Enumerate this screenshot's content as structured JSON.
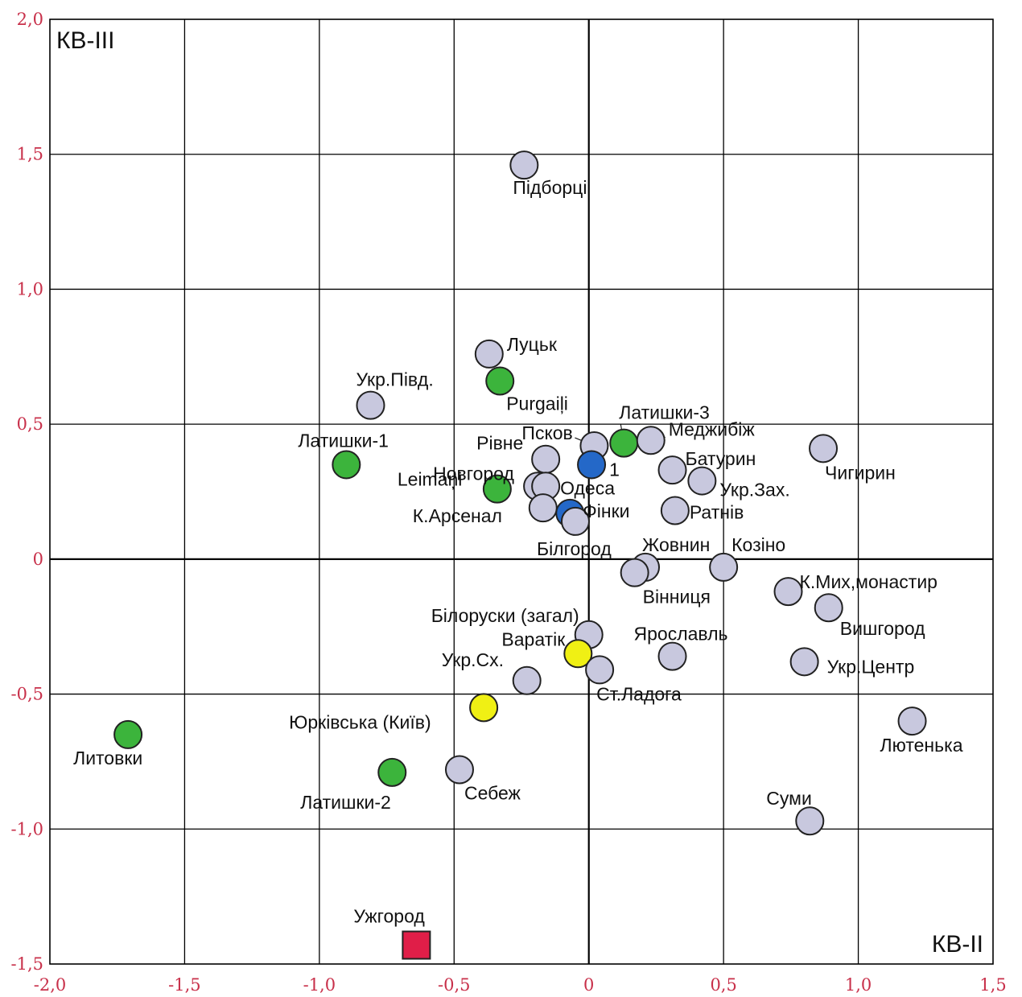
{
  "chart_data": {
    "type": "scatter",
    "x_range": [
      -2.0,
      1.5
    ],
    "y_range": [
      -1.5,
      2.0
    ],
    "grid": true,
    "x_ticks": [
      {
        "value": -2.0,
        "label": "-2,0"
      },
      {
        "value": -1.5,
        "label": "-1,5"
      },
      {
        "value": -1.0,
        "label": "-1,0"
      },
      {
        "value": -0.5,
        "label": "-0,5"
      },
      {
        "value": 0.0,
        "label": "0"
      },
      {
        "value": 0.5,
        "label": "0,5"
      },
      {
        "value": 1.0,
        "label": "1,0"
      },
      {
        "value": 1.5,
        "label": "1,5"
      }
    ],
    "y_ticks": [
      {
        "value": 2.0,
        "label": "2,0"
      },
      {
        "value": 1.5,
        "label": "1,5"
      },
      {
        "value": 1.0,
        "label": "1,0"
      },
      {
        "value": 0.5,
        "label": "0,5"
      },
      {
        "value": 0.0,
        "label": "0"
      },
      {
        "value": -0.5,
        "label": "-0,5"
      },
      {
        "value": -1.0,
        "label": "-1,0"
      },
      {
        "value": -1.5,
        "label": "-1,5"
      }
    ],
    "x_axis_label": "КВ-II",
    "y_axis_label": "КВ-III",
    "colors": {
      "lavender": "#c8c8de",
      "green": "#3cb43c",
      "blue": "#2468c8",
      "yellow": "#f0f014",
      "red": "#e01e48"
    },
    "points": [
      {
        "label": "Підборці",
        "x": -0.24,
        "y": 1.46,
        "color": "lavender",
        "shape": "circle"
      },
      {
        "label": "Луцьк",
        "x": -0.37,
        "y": 0.76,
        "color": "lavender",
        "shape": "circle"
      },
      {
        "label": "Purgaiļi",
        "x": -0.33,
        "y": 0.66,
        "color": "green",
        "shape": "circle"
      },
      {
        "label": "Укр.Півд.",
        "x": -0.81,
        "y": 0.57,
        "color": "lavender",
        "shape": "circle"
      },
      {
        "label": "Латишки-1",
        "x": -0.9,
        "y": 0.35,
        "color": "green",
        "shape": "circle"
      },
      {
        "label": "Латишки-3",
        "x": 0.13,
        "y": 0.43,
        "color": "green",
        "shape": "circle"
      },
      {
        "label": "Псков",
        "x": 0.02,
        "y": 0.42,
        "color": "lavender",
        "shape": "circle"
      },
      {
        "label": "Меджибіж",
        "x": 0.23,
        "y": 0.44,
        "color": "lavender",
        "shape": "circle"
      },
      {
        "label": "1",
        "x": 0.01,
        "y": 0.35,
        "color": "blue",
        "shape": "circle"
      },
      {
        "label": "Рівне",
        "x": -0.16,
        "y": 0.37,
        "color": "lavender",
        "shape": "circle"
      },
      {
        "label": "Новгород",
        "x": -0.19,
        "y": 0.27,
        "color": "lavender",
        "shape": "circle"
      },
      {
        "label": "Leimaņi",
        "x": -0.34,
        "y": 0.26,
        "color": "green",
        "shape": "circle"
      },
      {
        "label": "Одеса",
        "x": -0.16,
        "y": 0.27,
        "color": "lavender",
        "shape": "circle"
      },
      {
        "label": "К.Арсенал",
        "x": -0.17,
        "y": 0.19,
        "color": "lavender",
        "shape": "circle"
      },
      {
        "label": "Фінки",
        "x": -0.07,
        "y": 0.17,
        "color": "blue",
        "shape": "circle"
      },
      {
        "label": "Білгород",
        "x": -0.05,
        "y": 0.14,
        "color": "lavender",
        "shape": "circle"
      },
      {
        "label": "Батурин",
        "x": 0.31,
        "y": 0.33,
        "color": "lavender",
        "shape": "circle"
      },
      {
        "label": "Укр.Зах.",
        "x": 0.42,
        "y": 0.29,
        "color": "lavender",
        "shape": "circle"
      },
      {
        "label": "Ратнів",
        "x": 0.32,
        "y": 0.18,
        "color": "lavender",
        "shape": "circle"
      },
      {
        "label": "Чигирин",
        "x": 0.87,
        "y": 0.41,
        "color": "lavender",
        "shape": "circle"
      },
      {
        "label": "Жовнин",
        "x": 0.21,
        "y": -0.03,
        "color": "lavender",
        "shape": "circle"
      },
      {
        "label": "Вінниця",
        "x": 0.17,
        "y": -0.05,
        "color": "lavender",
        "shape": "circle"
      },
      {
        "label": "Козіно",
        "x": 0.5,
        "y": -0.03,
        "color": "lavender",
        "shape": "circle"
      },
      {
        "label": "К.Мих,монастир",
        "x": 0.74,
        "y": -0.12,
        "color": "lavender",
        "shape": "circle"
      },
      {
        "label": "Вишгород",
        "x": 0.89,
        "y": -0.18,
        "color": "lavender",
        "shape": "circle"
      },
      {
        "label": "Білоруски (загал)",
        "x": 0.0,
        "y": -0.28,
        "color": "lavender",
        "shape": "circle"
      },
      {
        "label": "Варатік",
        "x": -0.04,
        "y": -0.35,
        "color": "yellow",
        "shape": "circle"
      },
      {
        "label": "Ярославль",
        "x": 0.31,
        "y": -0.36,
        "color": "lavender",
        "shape": "circle"
      },
      {
        "label": "Укр.Центр",
        "x": 0.8,
        "y": -0.38,
        "color": "lavender",
        "shape": "circle"
      },
      {
        "label": "Ст.Ладога",
        "x": 0.04,
        "y": -0.41,
        "color": "lavender",
        "shape": "circle"
      },
      {
        "label": "Укр.Сх.",
        "x": -0.23,
        "y": -0.45,
        "color": "lavender",
        "shape": "circle"
      },
      {
        "label": "Юрківська (Київ)",
        "x": -0.39,
        "y": -0.55,
        "color": "yellow",
        "shape": "circle"
      },
      {
        "label": "Лютенька",
        "x": 1.2,
        "y": -0.6,
        "color": "lavender",
        "shape": "circle"
      },
      {
        "label": "Литовки",
        "x": -1.71,
        "y": -0.65,
        "color": "green",
        "shape": "circle"
      },
      {
        "label": "Себеж",
        "x": -0.48,
        "y": -0.78,
        "color": "lavender",
        "shape": "circle"
      },
      {
        "label": "Латишки-2",
        "x": -0.73,
        "y": -0.79,
        "color": "green",
        "shape": "circle"
      },
      {
        "label": "Суми",
        "x": 0.82,
        "y": -0.97,
        "color": "lavender",
        "shape": "circle"
      },
      {
        "label": "Ужгород",
        "x": -0.64,
        "y": -1.43,
        "color": "red",
        "shape": "square"
      }
    ]
  }
}
